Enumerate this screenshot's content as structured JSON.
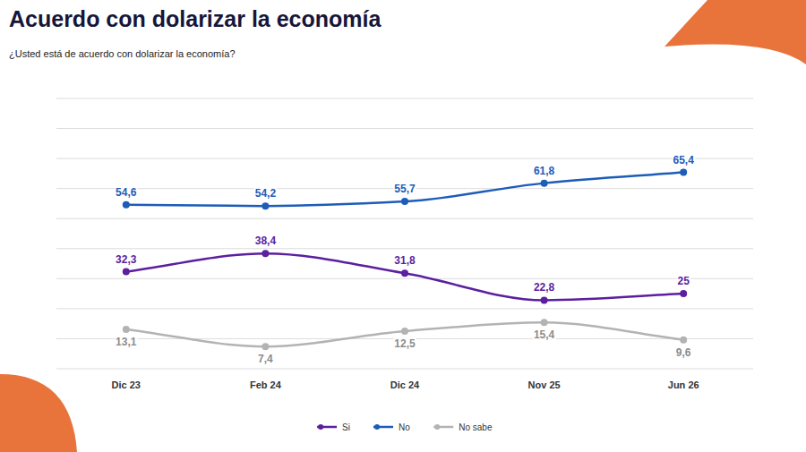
{
  "chart_data": {
    "type": "line",
    "title": "Acuerdo con dolarizar la economía",
    "subtitle": "¿Usted está de acuerdo con dolarizar la economía?",
    "categories": [
      "Dic 23",
      "Feb 24",
      "Dic 24",
      "Nov 25",
      "Jun 26"
    ],
    "series": [
      {
        "name": "Si",
        "color": "#5b1f9f",
        "values": [
          32.3,
          38.4,
          31.8,
          22.8,
          25
        ],
        "value_labels": [
          "32,3",
          "38,4",
          "31,8",
          "22,8",
          "25"
        ]
      },
      {
        "name": "No",
        "color": "#1d5cb8",
        "values": [
          54.6,
          54.2,
          55.7,
          61.8,
          65.4
        ],
        "value_labels": [
          "54,6",
          "54,2",
          "55,7",
          "61,8",
          "65,4"
        ]
      },
      {
        "name": "No sabe",
        "color": "#b3b3b3",
        "values": [
          13.1,
          7.4,
          12.5,
          15.4,
          9.6
        ],
        "value_labels": [
          "13,1",
          "7,4",
          "12,5",
          "15,4",
          "9,6"
        ]
      }
    ],
    "ylim": [
      0,
      90
    ],
    "yticks": [
      0,
      10,
      20,
      30,
      40,
      50,
      60,
      70,
      80,
      90
    ],
    "grid": true,
    "tick_labels": "x",
    "legend": "bottom",
    "data_labels": true,
    "marker": "circle"
  }
}
